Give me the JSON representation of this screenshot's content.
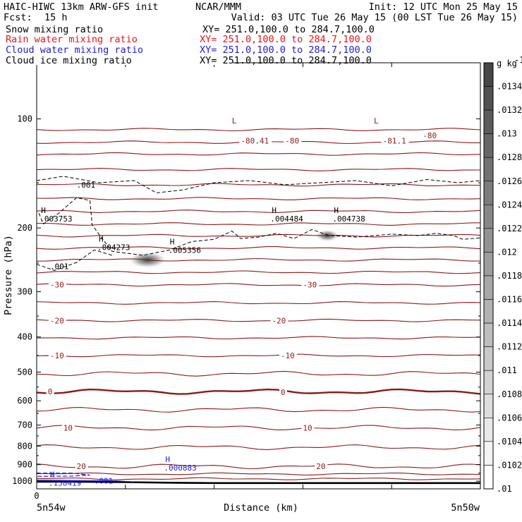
{
  "header": {
    "model": "HAIC-HIWC 13km ARW-GFS init",
    "org": "NCAR/MMM",
    "init": "Init: 12 UTC Mon 25 May 15",
    "fcst_label": "Fcst:",
    "fcst_value": "15 h",
    "valid": "Valid: 03 UTC Tue 26 May 15 (00 LST Tue 26 May 15)"
  },
  "fields": [
    {
      "name": "Snow mixing ratio",
      "xy": "XY= 251.0,100.0 to 284.7,100.0",
      "color": "#000000"
    },
    {
      "name": "Rain water mixing ratio",
      "xy": "XY= 251.0,100.0 to 284.7,100.0",
      "color": "#e8141e"
    },
    {
      "name": "Cloud water mixing ratio",
      "xy": "XY= 251.0,100.0 to 284.7,100.0",
      "color": "#1e1ed2"
    },
    {
      "name": "Cloud ice mixing ratio",
      "xy": "XY= 251.0,100.0 to 284.7,100.0",
      "color": "#000000"
    }
  ],
  "colors": {
    "temperature_contour": "#8b1a1a",
    "cloud_water": "#1e1ed2",
    "terrain": "#000000"
  },
  "chart_data": {
    "type": "cross-section",
    "xlabel": "Distance (km)",
    "ylabel": "Pressure (hPa)",
    "x_range": [
      0,
      100
    ],
    "x_ticks": [
      0,
      20,
      40,
      60,
      80,
      100
    ],
    "x_end_labels": [
      "5n54w",
      "5n50w"
    ],
    "y_scale": "log-pressure",
    "y_range": [
      1050,
      70
    ],
    "y_ticks": [
      100,
      200,
      300,
      400,
      500,
      600,
      700,
      800,
      900,
      1000
    ],
    "isotherm_levels": [
      -80,
      -70,
      -60,
      -50,
      -40,
      -30,
      -20,
      -10,
      0,
      10,
      20
    ],
    "isotherm_labels": [
      {
        "text": "-80.41",
        "x": 46,
        "p": 115
      },
      {
        "text": "-80",
        "x": 56,
        "p": 115
      },
      {
        "text": "-81.1",
        "x": 78,
        "p": 115
      },
      {
        "text": "-80",
        "x": 87,
        "p": 111
      },
      {
        "text": "-30",
        "x": 3,
        "p": 287
      },
      {
        "text": "-30",
        "x": 60,
        "p": 287
      },
      {
        "text": "-20",
        "x": 3,
        "p": 360
      },
      {
        "text": "-20",
        "x": 53,
        "p": 360
      },
      {
        "text": "-10",
        "x": 3,
        "p": 450
      },
      {
        "text": "-10",
        "x": 55,
        "p": 450
      },
      {
        "text": "0",
        "x": 2.5,
        "p": 566
      },
      {
        "text": "0",
        "x": 55,
        "p": 568
      },
      {
        "text": "10",
        "x": 6,
        "p": 712
      },
      {
        "text": "10",
        "x": 60,
        "p": 712
      },
      {
        "text": "20",
        "x": 9,
        "p": 910
      },
      {
        "text": "20",
        "x": 63,
        "p": 910
      }
    ],
    "maxima": [
      {
        "marker": "L",
        "value": "",
        "x": 44,
        "p": 103,
        "color": "#8b1a1a"
      },
      {
        "marker": "L",
        "value": "",
        "x": 76,
        "p": 103,
        "color": "#8b1a1a"
      },
      {
        "marker": "H",
        "value": ".003753",
        "x": 1,
        "p": 182,
        "color": "#000000"
      },
      {
        "marker": "H",
        "value": ".004273",
        "x": 14,
        "p": 218,
        "color": "#000000"
      },
      {
        "marker": "H",
        "value": ".005356",
        "x": 30,
        "p": 222,
        "color": "#000000"
      },
      {
        "marker": "H",
        "value": ".004484",
        "x": 53,
        "p": 182,
        "color": "#000000"
      },
      {
        "marker": "H",
        "value": ".004738",
        "x": 67,
        "p": 182,
        "color": "#000000"
      },
      {
        "marker": "H",
        "value": ".000883",
        "x": 29,
        "p": 885,
        "color": "#1e1ed2"
      },
      {
        "marker": "H",
        "value": ".158419",
        "x": 3,
        "p": 975,
        "color": "#1e1ed2"
      }
    ],
    "snow_contour_labels": [
      {
        "text": ".001",
        "x": 9,
        "p": 152
      },
      {
        "text": ".001",
        "x": 3,
        "p": 255
      }
    ],
    "cloud_water_contour_labels": [
      {
        "text": ".001",
        "x": 13,
        "p": 997
      }
    ],
    "shading": {
      "label": "g kg",
      "exponent": "-1",
      "levels": [
        ".0134",
        ".0132",
        ".013",
        ".0128",
        ".0126",
        ".0124",
        ".0122",
        ".012",
        ".0118",
        ".0116",
        ".0114",
        ".0112",
        ".011",
        ".0108",
        ".0106",
        ".0104",
        ".0102",
        ".01"
      ]
    },
    "shaded_maxima": [
      {
        "x": 25,
        "p": 245
      },
      {
        "x": 65.5,
        "p": 210
      }
    ]
  }
}
